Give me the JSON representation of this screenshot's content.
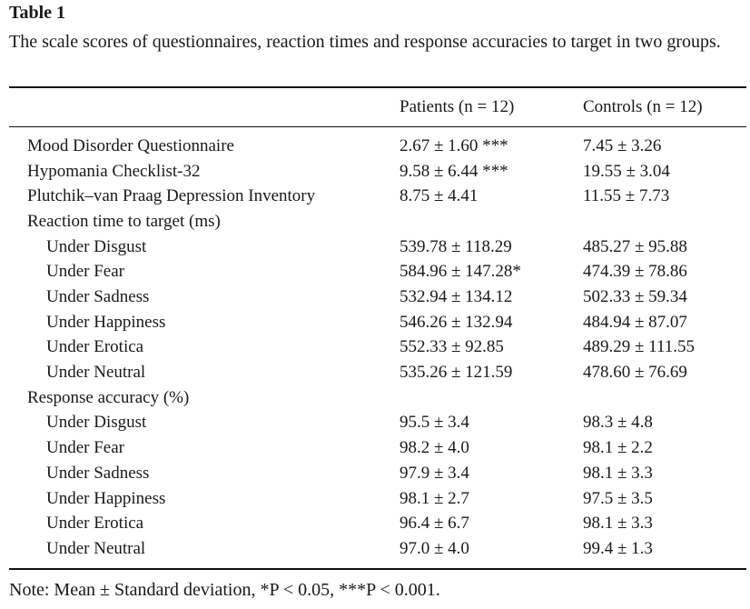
{
  "caption": {
    "label": "Table 1",
    "text": "The scale scores of questionnaires, reaction times and response accuracies to target in two groups."
  },
  "columns": {
    "patients": "Patients (n = 12)",
    "controls": "Controls (n = 12)"
  },
  "rows": [
    {
      "label": "Mood Disorder Questionnaire",
      "patients": "2.67 ± 1.60 ***",
      "controls": "7.45 ± 3.26"
    },
    {
      "label": "Hypomania Checklist-32",
      "patients": "9.58 ± 6.44 ***",
      "controls": "19.55 ± 3.04"
    },
    {
      "label": "Plutchik–van Praag Depression Inventory",
      "patients": "8.75 ± 4.41",
      "controls": "11.55 ± 7.73"
    },
    {
      "label": "Reaction time to target (ms)",
      "patients": "",
      "controls": ""
    },
    {
      "label": "Under Disgust",
      "patients": "539.78 ± 118.29",
      "controls": "485.27 ± 95.88"
    },
    {
      "label": "Under Fear",
      "patients": "584.96 ± 147.28*",
      "controls": "474.39 ± 78.86"
    },
    {
      "label": "Under Sadness",
      "patients": "532.94 ± 134.12",
      "controls": "502.33 ± 59.34"
    },
    {
      "label": "Under Happiness",
      "patients": "546.26 ± 132.94",
      "controls": "484.94 ± 87.07"
    },
    {
      "label": "Under Erotica",
      "patients": "552.33 ± 92.85",
      "controls": "489.29 ± 111.55"
    },
    {
      "label": "Under Neutral",
      "patients": "535.26 ± 121.59",
      "controls": "478.60 ± 76.69"
    },
    {
      "label": "Response accuracy (%)",
      "patients": "",
      "controls": ""
    },
    {
      "label": "Under Disgust",
      "patients": "95.5 ± 3.4",
      "controls": "98.3 ± 4.8"
    },
    {
      "label": "Under Fear",
      "patients": "98.2 ± 4.0",
      "controls": "98.1 ± 2.2"
    },
    {
      "label": "Under Sadness",
      "patients": "97.9 ± 3.4",
      "controls": "98.1 ± 3.3"
    },
    {
      "label": "Under Happiness",
      "patients": "98.1 ± 2.7",
      "controls": "97.5 ± 3.5"
    },
    {
      "label": "Under Erotica",
      "patients": "96.4 ± 6.7",
      "controls": "98.1 ± 3.3"
    },
    {
      "label": "Under Neutral",
      "patients": "97.0 ± 4.0",
      "controls": "99.4 ± 1.3"
    }
  ],
  "note": "Note: Mean ± Standard deviation, *P < 0.05, ***P < 0.001."
}
